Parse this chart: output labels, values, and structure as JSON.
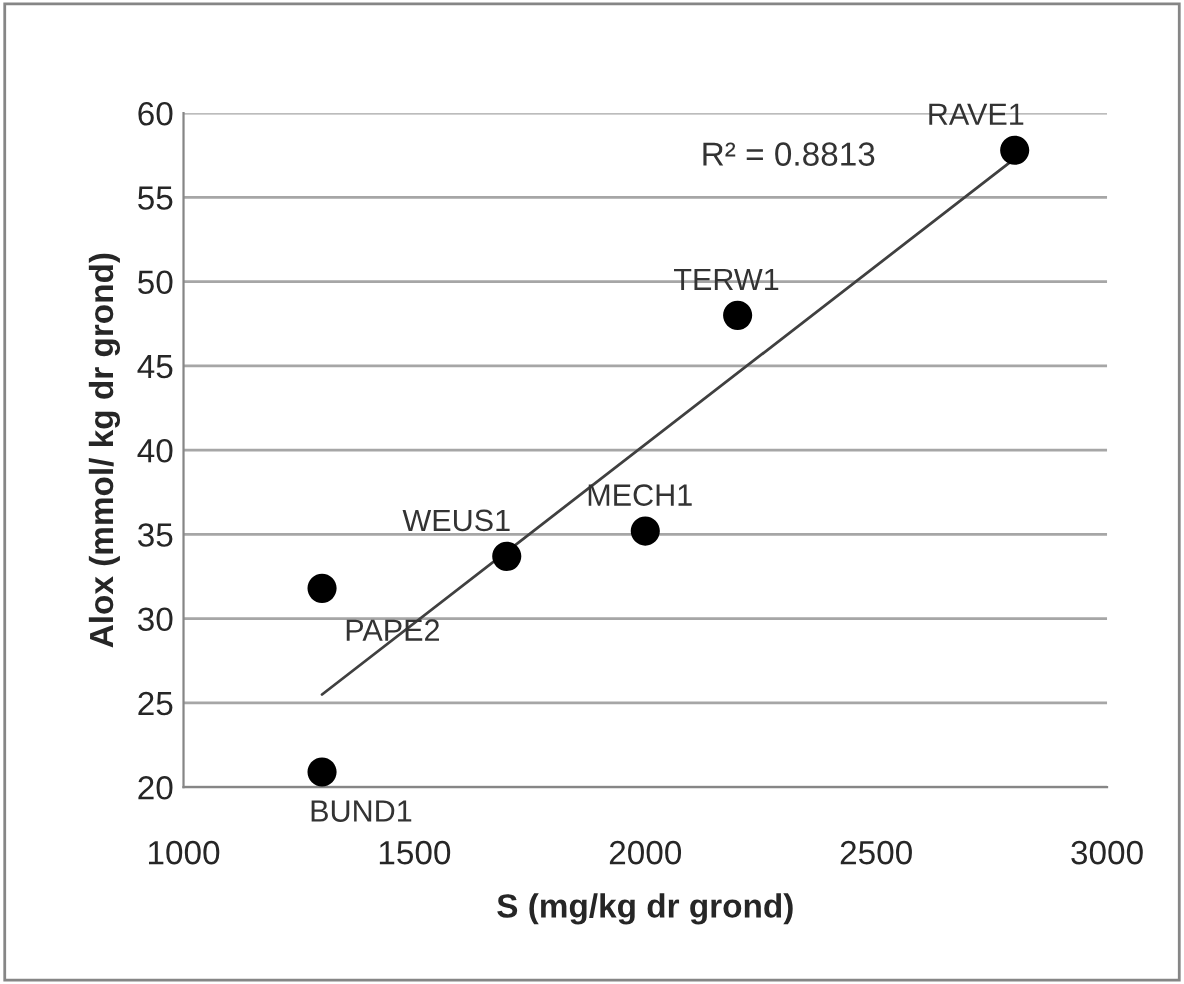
{
  "chart_data": {
    "type": "scatter",
    "xlabel": "S (mg/kg dr grond)",
    "ylabel": "Alox (mmol/ kg dr grond)",
    "xlim": [
      1000,
      3000
    ],
    "xticks": [
      1000,
      1500,
      2000,
      2500,
      3000
    ],
    "ylim": [
      20,
      60
    ],
    "yticks": [
      20,
      25,
      30,
      35,
      40,
      45,
      50,
      55,
      60
    ],
    "grid": "y",
    "legend": false,
    "marker": "circle",
    "series": [
      {
        "color": "#000000",
        "x": [
          2800,
          2200,
          2000,
          1700,
          1300,
          1300
        ],
        "values": [
          57.8,
          48.0,
          35.2,
          33.7,
          31.8,
          20.9
        ]
      },
      {
        "type": "line",
        "color": "#404040",
        "line_style": "solid",
        "marker": "none",
        "x": [
          1300,
          2800
        ],
        "values": [
          25.5,
          57.3
        ]
      }
    ],
    "annotations": [
      {
        "text": "RAVE1",
        "x": 2800,
        "y": 57.8
      },
      {
        "text": "TERW1",
        "x": 2200,
        "y": 48.0
      },
      {
        "text": "MECH1",
        "x": 2000,
        "y": 35.2
      },
      {
        "text": "WEUS1",
        "x": 1700,
        "y": 33.7
      },
      {
        "text": "PAPE2",
        "x": 1300,
        "y": 31.8
      },
      {
        "text": "BUND1",
        "x": 1300,
        "y": 20.9
      },
      "R² = 0.8813"
    ]
  }
}
